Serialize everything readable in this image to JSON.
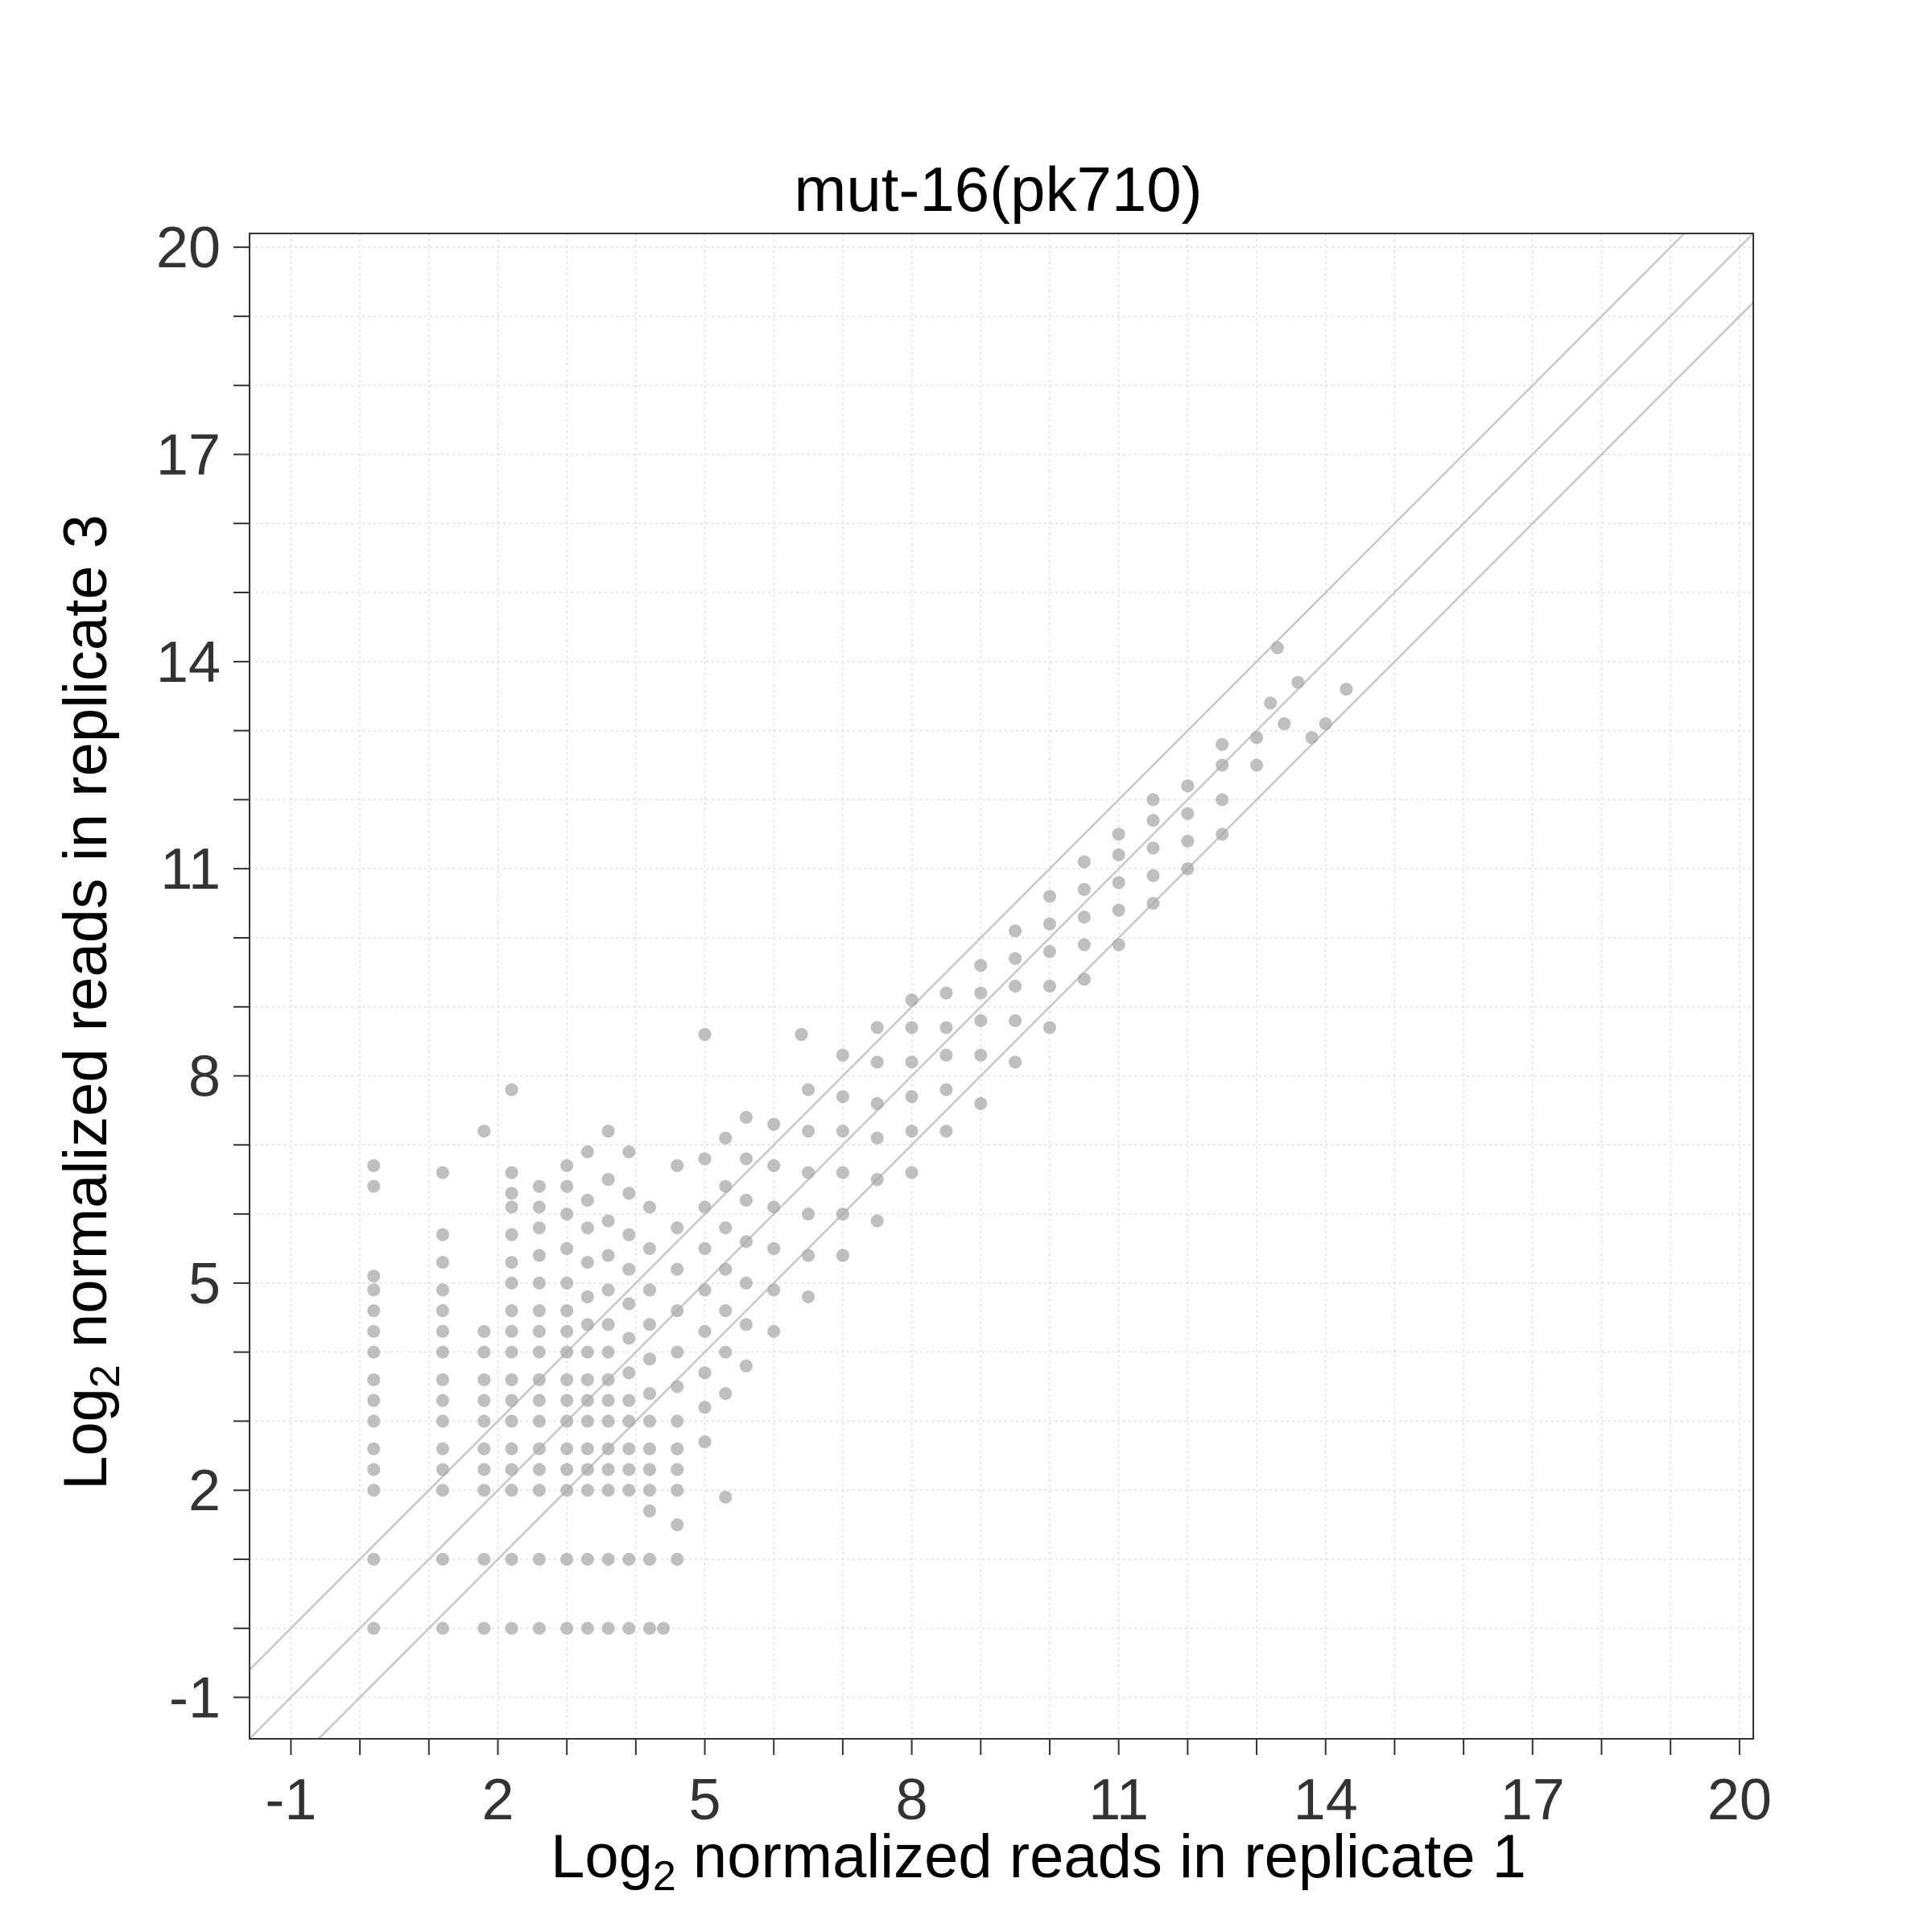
{
  "chart_data": {
    "type": "scatter",
    "title": "mut-16(pk710)",
    "xlabel": {
      "prefix": "Log",
      "subscript": "2",
      "suffix": " normalized reads in replicate 1"
    },
    "ylabel": {
      "prefix": "Log",
      "subscript": "2",
      "suffix": " normalized reads in replicate 3"
    },
    "xlim": [
      -1.6,
      20.2
    ],
    "ylim": [
      -1.6,
      20.2
    ],
    "x_ticks": [
      "-1",
      "2",
      "5",
      "8",
      "11",
      "14",
      "17",
      "20"
    ],
    "y_ticks": [
      "-1",
      "2",
      "5",
      "8",
      "11",
      "14",
      "17",
      "20"
    ],
    "minor_tick_step": 1,
    "grid": true,
    "reference_lines": [
      {
        "slope": 1,
        "intercept": 1,
        "label": ""
      },
      {
        "slope": 1,
        "intercept": 0,
        "label": ""
      },
      {
        "slope": 1,
        "intercept": -1,
        "label": ""
      }
    ],
    "point_color": "#a9a9a9",
    "series": [
      {
        "points": [
          [
            0.2,
            0
          ],
          [
            0.2,
            1
          ],
          [
            0.2,
            2
          ],
          [
            0.2,
            2.3
          ],
          [
            0.2,
            2.6
          ],
          [
            0.2,
            3
          ],
          [
            0.2,
            3.3
          ],
          [
            0.2,
            3.6
          ],
          [
            0.2,
            4
          ],
          [
            0.2,
            4.3
          ],
          [
            0.2,
            4.6
          ],
          [
            0.2,
            4.9
          ],
          [
            0.2,
            5.1
          ],
          [
            0.2,
            6.4
          ],
          [
            0.2,
            6.7
          ],
          [
            1.2,
            0
          ],
          [
            1.2,
            1
          ],
          [
            1.2,
            2
          ],
          [
            1.2,
            2.3
          ],
          [
            1.2,
            2.6
          ],
          [
            1.2,
            3
          ],
          [
            1.2,
            3.3
          ],
          [
            1.2,
            3.6
          ],
          [
            1.2,
            4
          ],
          [
            1.2,
            4.3
          ],
          [
            1.2,
            4.6
          ],
          [
            1.2,
            4.9
          ],
          [
            1.2,
            5.3
          ],
          [
            1.2,
            5.7
          ],
          [
            1.2,
            6.6
          ],
          [
            1.8,
            0
          ],
          [
            1.8,
            1
          ],
          [
            1.8,
            2
          ],
          [
            1.8,
            2.3
          ],
          [
            1.8,
            2.6
          ],
          [
            1.8,
            3
          ],
          [
            1.8,
            3.3
          ],
          [
            1.8,
            3.6
          ],
          [
            1.8,
            4
          ],
          [
            1.8,
            4.3
          ],
          [
            1.8,
            7.2
          ],
          [
            2.2,
            0
          ],
          [
            2.2,
            1
          ],
          [
            2.2,
            2
          ],
          [
            2.2,
            2.3
          ],
          [
            2.2,
            2.6
          ],
          [
            2.2,
            3
          ],
          [
            2.2,
            3.3
          ],
          [
            2.2,
            3.6
          ],
          [
            2.2,
            4
          ],
          [
            2.2,
            4.3
          ],
          [
            2.2,
            4.6
          ],
          [
            2.2,
            5
          ],
          [
            2.2,
            5.3
          ],
          [
            2.2,
            5.7
          ],
          [
            2.2,
            6.1
          ],
          [
            2.2,
            6.3
          ],
          [
            2.2,
            6.6
          ],
          [
            2.2,
            7.8
          ],
          [
            2.6,
            0
          ],
          [
            2.6,
            1
          ],
          [
            2.6,
            2
          ],
          [
            2.6,
            2.3
          ],
          [
            2.6,
            2.6
          ],
          [
            2.6,
            3
          ],
          [
            2.6,
            3.3
          ],
          [
            2.6,
            3.6
          ],
          [
            2.6,
            4
          ],
          [
            2.6,
            4.3
          ],
          [
            2.6,
            4.6
          ],
          [
            2.6,
            5
          ],
          [
            2.6,
            5.4
          ],
          [
            2.6,
            5.8
          ],
          [
            2.6,
            6.1
          ],
          [
            2.6,
            6.4
          ],
          [
            3.0,
            0
          ],
          [
            3.0,
            1
          ],
          [
            3.0,
            2
          ],
          [
            3.0,
            2.3
          ],
          [
            3.0,
            2.6
          ],
          [
            3.0,
            3
          ],
          [
            3.0,
            3.3
          ],
          [
            3.0,
            3.6
          ],
          [
            3.0,
            4
          ],
          [
            3.0,
            4.3
          ],
          [
            3.0,
            4.6
          ],
          [
            3.0,
            5
          ],
          [
            3.0,
            5.5
          ],
          [
            3.0,
            6
          ],
          [
            3.0,
            6.4
          ],
          [
            3.0,
            6.7
          ],
          [
            3.3,
            0
          ],
          [
            3.3,
            1
          ],
          [
            3.3,
            2
          ],
          [
            3.3,
            2.3
          ],
          [
            3.3,
            2.6
          ],
          [
            3.3,
            3
          ],
          [
            3.3,
            3.3
          ],
          [
            3.3,
            3.6
          ],
          [
            3.3,
            4
          ],
          [
            3.3,
            4.4
          ],
          [
            3.3,
            4.8
          ],
          [
            3.3,
            5.3
          ],
          [
            3.3,
            5.8
          ],
          [
            3.3,
            6.2
          ],
          [
            3.3,
            6.9
          ],
          [
            3.6,
            0
          ],
          [
            3.6,
            1
          ],
          [
            3.6,
            2
          ],
          [
            3.6,
            2.3
          ],
          [
            3.6,
            2.6
          ],
          [
            3.6,
            3
          ],
          [
            3.6,
            3.3
          ],
          [
            3.6,
            3.6
          ],
          [
            3.6,
            4
          ],
          [
            3.6,
            4.4
          ],
          [
            3.6,
            4.9
          ],
          [
            3.6,
            5.4
          ],
          [
            3.6,
            5.9
          ],
          [
            3.6,
            6.5
          ],
          [
            3.6,
            7.2
          ],
          [
            3.9,
            0
          ],
          [
            3.9,
            1
          ],
          [
            3.9,
            2
          ],
          [
            3.9,
            2.3
          ],
          [
            3.9,
            2.6
          ],
          [
            3.9,
            3
          ],
          [
            3.9,
            3.3
          ],
          [
            3.9,
            3.7
          ],
          [
            3.9,
            4.2
          ],
          [
            3.9,
            4.7
          ],
          [
            3.9,
            5.2
          ],
          [
            3.9,
            5.7
          ],
          [
            3.9,
            6.3
          ],
          [
            3.9,
            6.9
          ],
          [
            4.2,
            0
          ],
          [
            4.2,
            1
          ],
          [
            4.2,
            1.7
          ],
          [
            4.2,
            2
          ],
          [
            4.2,
            2.3
          ],
          [
            4.2,
            2.6
          ],
          [
            4.2,
            3
          ],
          [
            4.2,
            3.4
          ],
          [
            4.2,
            3.9
          ],
          [
            4.2,
            4.4
          ],
          [
            4.2,
            4.9
          ],
          [
            4.2,
            5.5
          ],
          [
            4.2,
            6.1
          ],
          [
            4.4,
            0
          ],
          [
            4.6,
            1
          ],
          [
            4.6,
            1.5
          ],
          [
            4.6,
            2
          ],
          [
            4.6,
            2.3
          ],
          [
            4.6,
            2.6
          ],
          [
            4.6,
            3
          ],
          [
            4.6,
            3.5
          ],
          [
            4.6,
            4
          ],
          [
            4.6,
            4.6
          ],
          [
            4.6,
            5.2
          ],
          [
            4.6,
            5.8
          ],
          [
            4.6,
            6.7
          ],
          [
            5.0,
            2.7
          ],
          [
            5.0,
            3.2
          ],
          [
            5.0,
            3.7
          ],
          [
            5.0,
            4.3
          ],
          [
            5.0,
            4.9
          ],
          [
            5.0,
            5.5
          ],
          [
            5.0,
            6.1
          ],
          [
            5.0,
            6.8
          ],
          [
            5.0,
            8.6
          ],
          [
            5.3,
            1.9
          ],
          [
            5.3,
            3.4
          ],
          [
            5.3,
            4
          ],
          [
            5.3,
            4.6
          ],
          [
            5.3,
            5.2
          ],
          [
            5.3,
            5.8
          ],
          [
            5.3,
            6.4
          ],
          [
            5.3,
            7.1
          ],
          [
            5.6,
            3.8
          ],
          [
            5.6,
            4.4
          ],
          [
            5.6,
            5
          ],
          [
            5.6,
            5.6
          ],
          [
            5.6,
            6.2
          ],
          [
            5.6,
            6.8
          ],
          [
            5.6,
            7.4
          ],
          [
            6.0,
            4.3
          ],
          [
            6.0,
            4.9
          ],
          [
            6.0,
            5.5
          ],
          [
            6.0,
            6.1
          ],
          [
            6.0,
            6.7
          ],
          [
            6.0,
            7.3
          ],
          [
            6.5,
            4.8
          ],
          [
            6.5,
            5.4
          ],
          [
            6.5,
            6
          ],
          [
            6.5,
            6.6
          ],
          [
            6.5,
            7.2
          ],
          [
            6.5,
            7.8
          ],
          [
            6.4,
            8.6
          ],
          [
            7.0,
            5.4
          ],
          [
            7.0,
            6
          ],
          [
            7.0,
            6.6
          ],
          [
            7.0,
            7.2
          ],
          [
            7.0,
            7.7
          ],
          [
            7.0,
            8.3
          ],
          [
            7.5,
            5.9
          ],
          [
            7.5,
            6.5
          ],
          [
            7.5,
            7.1
          ],
          [
            7.5,
            7.6
          ],
          [
            7.5,
            8.2
          ],
          [
            7.5,
            8.7
          ],
          [
            8.0,
            6.6
          ],
          [
            8.0,
            7.2
          ],
          [
            8.0,
            7.7
          ],
          [
            8.0,
            8.2
          ],
          [
            8.0,
            8.7
          ],
          [
            8.0,
            9.1
          ],
          [
            8.5,
            7.2
          ],
          [
            8.5,
            7.8
          ],
          [
            8.5,
            8.3
          ],
          [
            8.5,
            8.7
          ],
          [
            8.5,
            9.2
          ],
          [
            9.0,
            7.6
          ],
          [
            9.0,
            8.3
          ],
          [
            9.0,
            8.8
          ],
          [
            9.0,
            9.2
          ],
          [
            9.0,
            9.6
          ],
          [
            9.5,
            8.2
          ],
          [
            9.5,
            8.8
          ],
          [
            9.5,
            9.3
          ],
          [
            9.5,
            9.7
          ],
          [
            9.5,
            10.1
          ],
          [
            10.0,
            8.7
          ],
          [
            10.0,
            9.3
          ],
          [
            10.0,
            9.8
          ],
          [
            10.0,
            10.2
          ],
          [
            10.0,
            10.6
          ],
          [
            10.5,
            9.4
          ],
          [
            10.5,
            9.9
          ],
          [
            10.5,
            10.3
          ],
          [
            10.5,
            10.7
          ],
          [
            10.5,
            11.1
          ],
          [
            11.0,
            9.9
          ],
          [
            11.0,
            10.4
          ],
          [
            11.0,
            10.8
          ],
          [
            11.0,
            11.2
          ],
          [
            11.0,
            11.5
          ],
          [
            11.5,
            10.5
          ],
          [
            11.5,
            10.9
          ],
          [
            11.5,
            11.3
          ],
          [
            11.5,
            11.7
          ],
          [
            11.5,
            12.0
          ],
          [
            12.0,
            11.0
          ],
          [
            12.0,
            11.4
          ],
          [
            12.0,
            11.8
          ],
          [
            12.0,
            12.2
          ],
          [
            12.5,
            11.5
          ],
          [
            12.5,
            12.0
          ],
          [
            12.5,
            12.5
          ],
          [
            12.5,
            12.8
          ],
          [
            13.0,
            12.5
          ],
          [
            13.0,
            12.9
          ],
          [
            13.2,
            13.4
          ],
          [
            13.4,
            13.1
          ],
          [
            13.6,
            13.7
          ],
          [
            13.8,
            12.9
          ],
          [
            14.0,
            13.1
          ],
          [
            14.3,
            13.6
          ],
          [
            13.3,
            14.2
          ]
        ]
      }
    ]
  }
}
